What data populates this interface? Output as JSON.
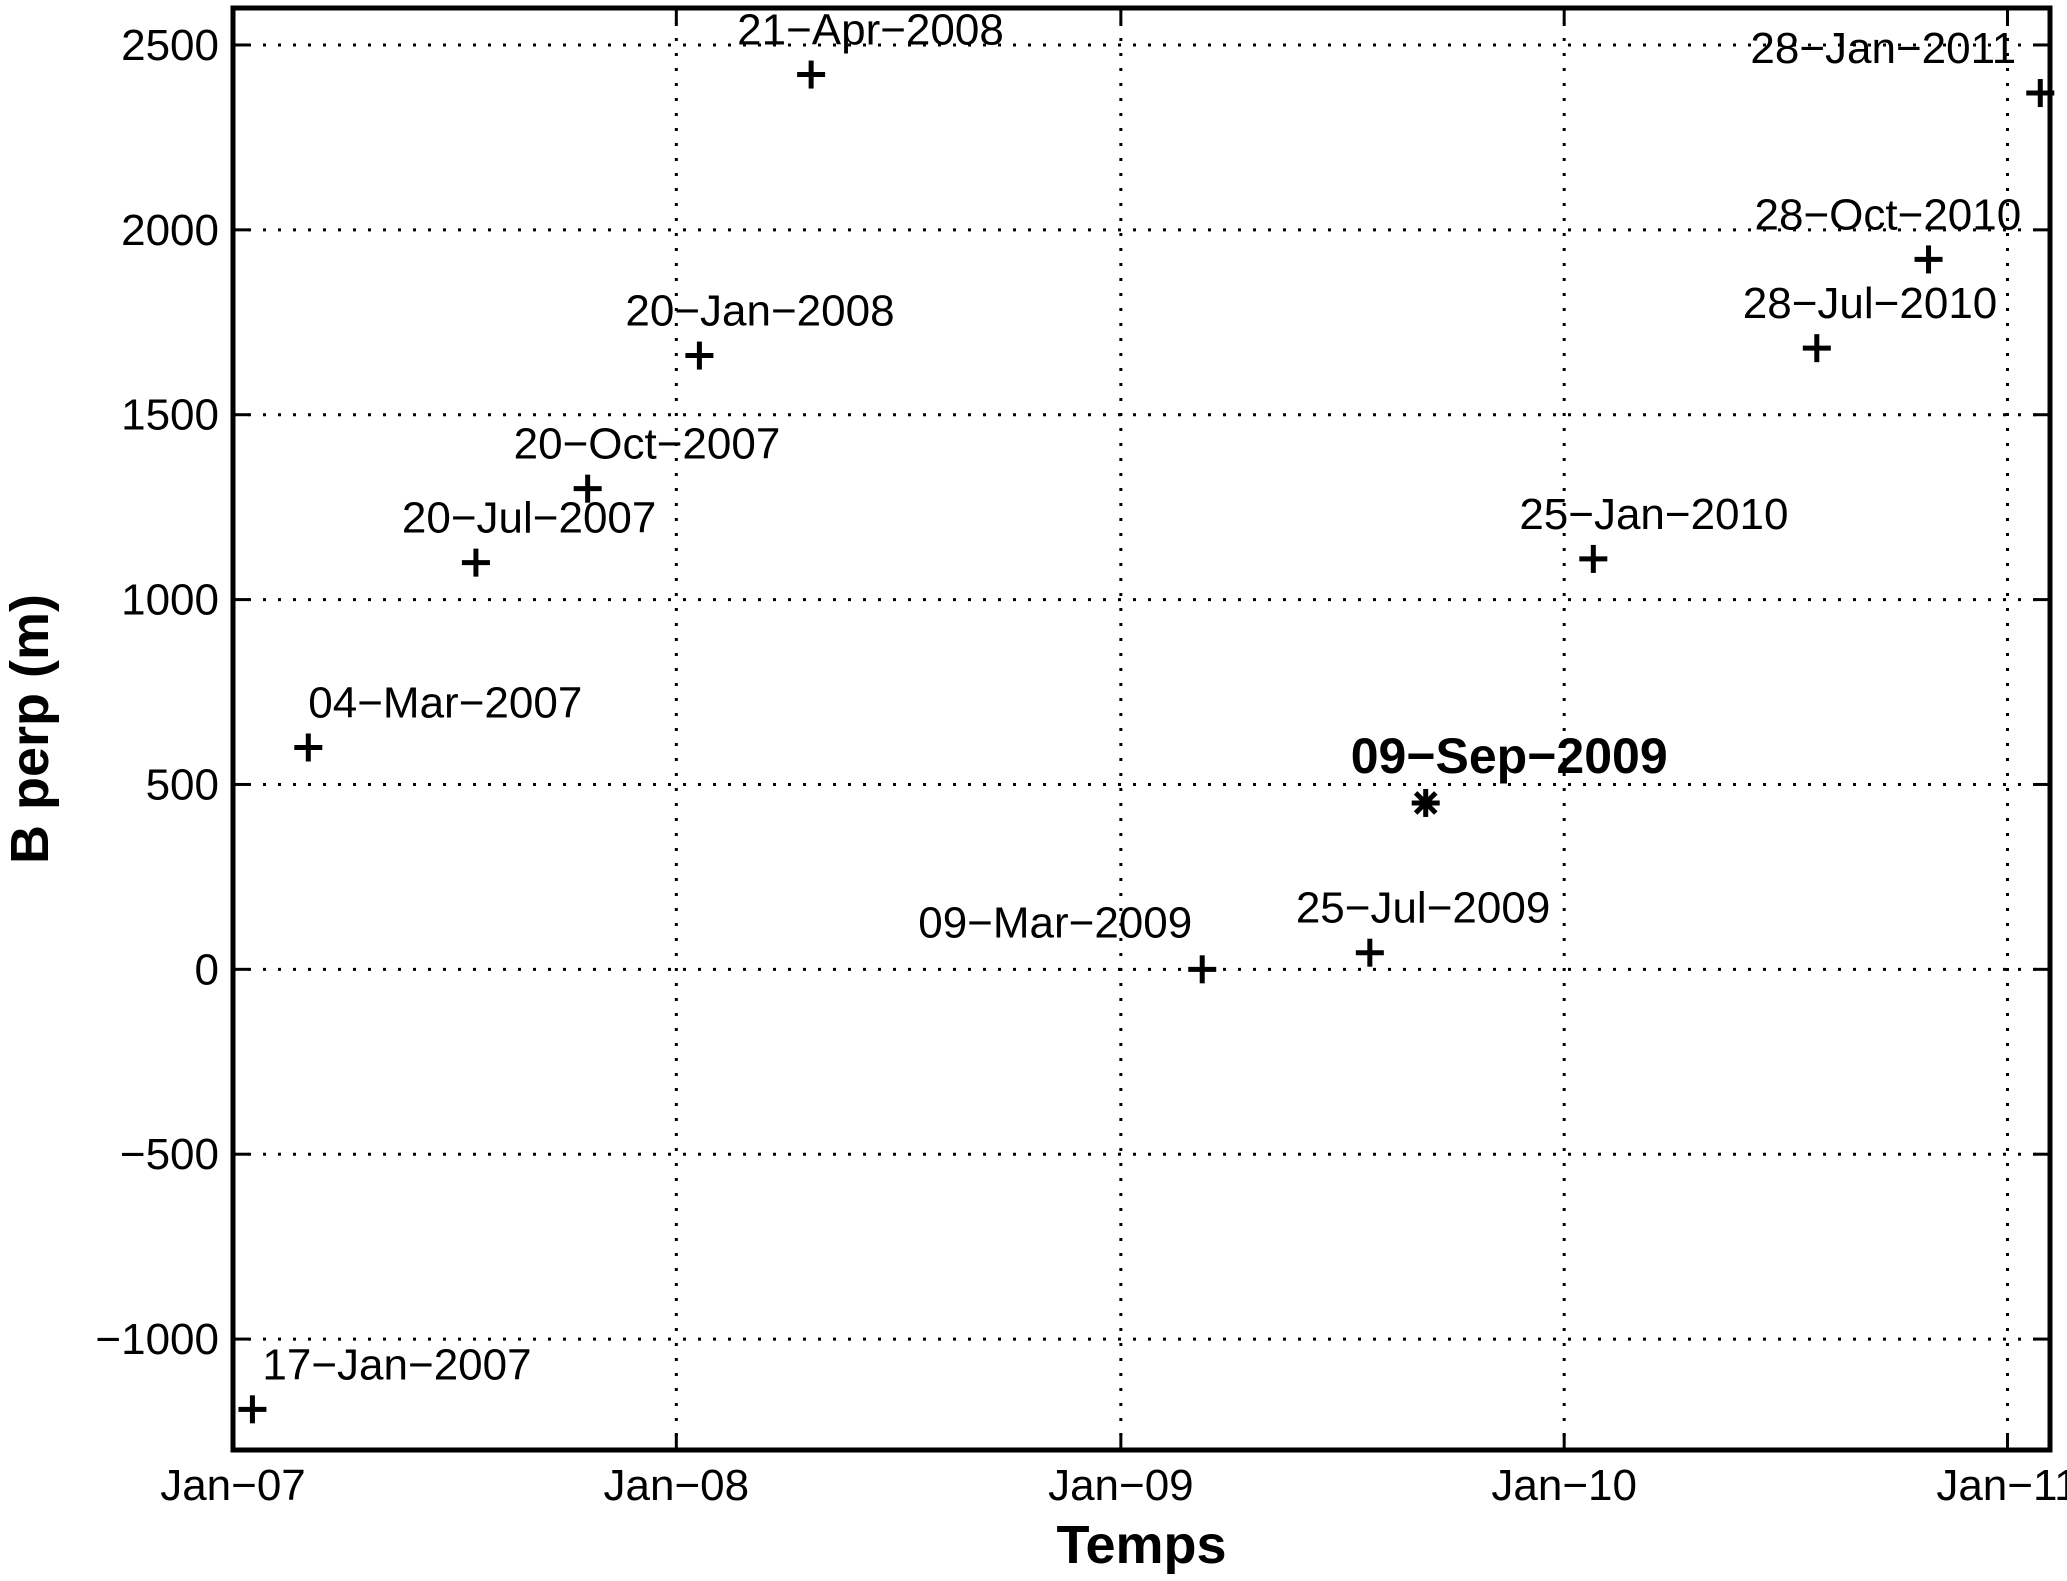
{
  "chart_data": {
    "type": "scatter",
    "xlabel": "Temps",
    "ylabel": "B perp (m)",
    "xlim": [
      "2007-01-01",
      "2011-02-05"
    ],
    "ylim": [
      -1300,
      2600
    ],
    "grid": true,
    "x_ticks": [
      {
        "date": "2007-01-01",
        "label": "Jan−07"
      },
      {
        "date": "2008-01-01",
        "label": "Jan−08"
      },
      {
        "date": "2009-01-01",
        "label": "Jan−09"
      },
      {
        "date": "2010-01-01",
        "label": "Jan−10"
      },
      {
        "date": "2011-01-01",
        "label": "Jan−11"
      }
    ],
    "y_ticks": [
      {
        "value": -1000,
        "label": "−1000"
      },
      {
        "value": -500,
        "label": "−500"
      },
      {
        "value": 0,
        "label": "0"
      },
      {
        "value": 500,
        "label": "500"
      },
      {
        "value": 1000,
        "label": "1000"
      },
      {
        "value": 1500,
        "label": "1500"
      },
      {
        "value": 2000,
        "label": "2000"
      },
      {
        "value": 2500,
        "label": "2500"
      }
    ],
    "points": [
      {
        "date": "2007-01-17",
        "y": -1190,
        "label": "17−Jan−2007",
        "marker": "plus",
        "label_dx": 10,
        "label_dy": -30,
        "anchor": "start"
      },
      {
        "date": "2007-03-04",
        "y": 600,
        "label": "04−Mar−2007",
        "marker": "plus",
        "label_dx": 0,
        "label_dy": -30,
        "anchor": "start"
      },
      {
        "date": "2007-07-20",
        "y": 1100,
        "label": "20−Jul−2007",
        "marker": "plus",
        "label_dx": -74,
        "label_dy": -30,
        "anchor": "start"
      },
      {
        "date": "2007-10-20",
        "y": 1300,
        "label": "20−Oct−2007",
        "marker": "plus",
        "label_dx": -74,
        "label_dy": -30,
        "anchor": "start"
      },
      {
        "date": "2008-01-20",
        "y": 1660,
        "label": "20−Jan−2008",
        "marker": "plus",
        "label_dx": -74,
        "label_dy": -30,
        "anchor": "start"
      },
      {
        "date": "2008-04-21",
        "y": 2420,
        "label": "21−Apr−2008",
        "marker": "plus",
        "label_dx": -74,
        "label_dy": -30,
        "anchor": "start"
      },
      {
        "date": "2009-03-09",
        "y": 0,
        "label": "09−Mar−2009",
        "marker": "plus",
        "label_dx": -10,
        "label_dy": -32,
        "anchor": "end"
      },
      {
        "date": "2009-07-25",
        "y": 45,
        "label": "25−Jul−2009",
        "marker": "plus",
        "label_dx": -74,
        "label_dy": -30,
        "anchor": "start"
      },
      {
        "date": "2009-09-09",
        "y": 450,
        "label": "09−Sep−2009",
        "marker": "star",
        "master": true,
        "label_dx": -75,
        "label_dy": -30,
        "anchor": "start"
      },
      {
        "date": "2010-01-25",
        "y": 1110,
        "label": "25−Jan−2010",
        "marker": "plus",
        "label_dx": -74,
        "label_dy": -30,
        "anchor": "start"
      },
      {
        "date": "2010-07-28",
        "y": 1680,
        "label": "28−Jul−2010",
        "marker": "plus",
        "label_dx": -74,
        "label_dy": -30,
        "anchor": "start"
      },
      {
        "date": "2010-10-28",
        "y": 1920,
        "label": "28−Oct−2010",
        "marker": "plus",
        "label_dx": -174,
        "label_dy": -30,
        "anchor": "start"
      },
      {
        "date": "2011-01-28",
        "y": 2370,
        "label": "28−Jan−2011",
        "marker": "plus",
        "label_dx": -24,
        "label_dy": -30,
        "anchor": "end"
      }
    ]
  }
}
